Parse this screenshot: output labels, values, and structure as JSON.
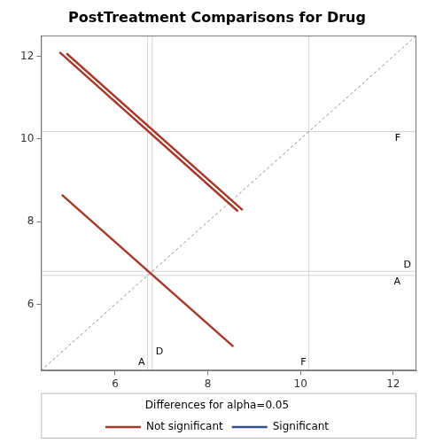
{
  "chart_data": {
    "type": "scatter",
    "title": "PostTreatment Comparisons for Drug",
    "legend_title": "Differences for alpha=0.05",
    "legend": "bottom",
    "xlim": [
      4.4,
      12.5
    ],
    "ylim": [
      4.4,
      12.5
    ],
    "xticks": [
      6,
      8,
      10,
      12
    ],
    "yticks": [
      6,
      8,
      10,
      12
    ],
    "reference_lines": [
      {
        "label": "A",
        "value": 6.7
      },
      {
        "label": "D",
        "value": 6.8
      },
      {
        "label": "F",
        "value": 10.18
      }
    ],
    "series": [
      {
        "name": "Not significant",
        "color": "#a33b2d",
        "line_style": "solid",
        "segments": [
          [
            [
              4.85,
              8.65
            ],
            [
              8.55,
              4.98
            ]
          ],
          [
            [
              4.8,
              12.1
            ],
            [
              8.65,
              8.25
            ]
          ],
          [
            [
              4.95,
              12.07
            ],
            [
              8.75,
              8.28
            ]
          ]
        ]
      },
      {
        "name": "Significant",
        "color": "#364f8d",
        "line_style": "solid",
        "segments": []
      }
    ]
  }
}
